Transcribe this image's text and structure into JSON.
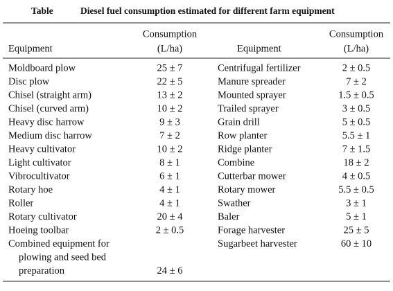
{
  "caption": {
    "label": "Table",
    "title": "Diesel fuel consumption estimated for different farm equipment"
  },
  "table": {
    "header": {
      "equipment": "Equipment",
      "consumption": [
        "Consumption",
        "(L/ha)"
      ]
    },
    "left": [
      {
        "equipment": [
          "Moldboard plow"
        ],
        "consumption": "25 ± 7"
      },
      {
        "equipment": [
          "Disc plow"
        ],
        "consumption": "22 ± 5"
      },
      {
        "equipment": [
          "Chisel (straight arm)"
        ],
        "consumption": "13 ± 2"
      },
      {
        "equipment": [
          "Chisel (curved arm)"
        ],
        "consumption": "10 ± 2"
      },
      {
        "equipment": [
          "Heavy disc harrow"
        ],
        "consumption": "9 ± 3"
      },
      {
        "equipment": [
          "Medium disc harrow"
        ],
        "consumption": "7 ± 2"
      },
      {
        "equipment": [
          "Heavy cultivator"
        ],
        "consumption": "10 ± 2"
      },
      {
        "equipment": [
          "Light cultivator"
        ],
        "consumption": "8 ± 1"
      },
      {
        "equipment": [
          "Vibrocultivator"
        ],
        "consumption": "6 ± 1"
      },
      {
        "equipment": [
          "Rotary hoe"
        ],
        "consumption": "4 ± 1"
      },
      {
        "equipment": [
          "Roller"
        ],
        "consumption": "4 ± 1"
      },
      {
        "equipment": [
          "Rotary cultivator"
        ],
        "consumption": "20 ± 4"
      },
      {
        "equipment": [
          "Hoeing toolbar"
        ],
        "consumption": "2 ± 0.5"
      },
      {
        "equipment": [
          "Combined equipment for",
          "plowing and seed bed",
          "preparation"
        ],
        "consumption": "24 ± 6"
      }
    ],
    "right": [
      {
        "equipment": [
          "Centrifugal fertilizer"
        ],
        "consumption": "2 ± 0.5"
      },
      {
        "equipment": [
          "Manure spreader"
        ],
        "consumption": "7 ± 2"
      },
      {
        "equipment": [
          "Mounted sprayer"
        ],
        "consumption": "1.5 ± 0.5"
      },
      {
        "equipment": [
          "Trailed sprayer"
        ],
        "consumption": "3 ± 0.5"
      },
      {
        "equipment": [
          "Grain drill"
        ],
        "consumption": "5 ± 0.5"
      },
      {
        "equipment": [
          "Row planter"
        ],
        "consumption": "5.5 ± 1"
      },
      {
        "equipment": [
          "Ridge planter"
        ],
        "consumption": "7 ± 1.5"
      },
      {
        "equipment": [
          "Combine"
        ],
        "consumption": "18 ± 2"
      },
      {
        "equipment": [
          "Cutterbar mower"
        ],
        "consumption": "4 ± 0.5"
      },
      {
        "equipment": [
          "Rotary mower"
        ],
        "consumption": "5.5 ± 0.5"
      },
      {
        "equipment": [
          "Swather"
        ],
        "consumption": "3 ± 1"
      },
      {
        "equipment": [
          "Baler"
        ],
        "consumption": "5 ± 1"
      },
      {
        "equipment": [
          "Forage harvester"
        ],
        "consumption": "25 ± 5"
      },
      {
        "equipment": [
          "Sugarbeet harvester"
        ],
        "consumption": "60 ± 10"
      }
    ]
  }
}
